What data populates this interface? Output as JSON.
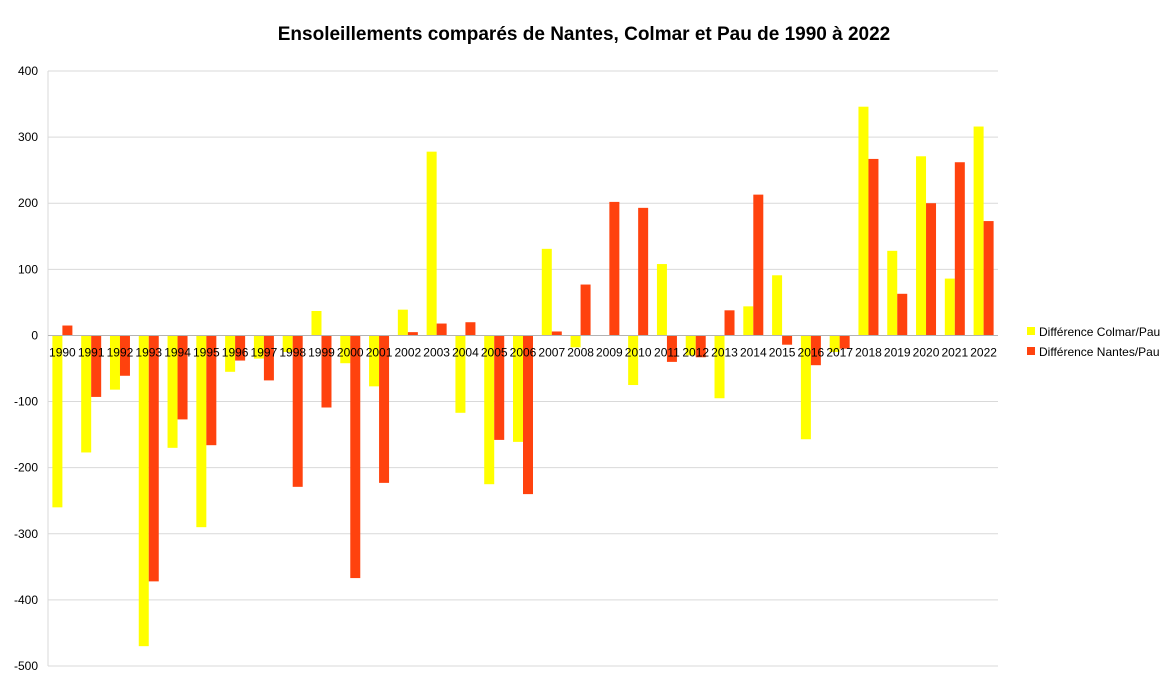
{
  "chart_data": {
    "type": "bar",
    "title": "Ensoleillements comparés de Nantes, Colmar et Pau de 1990 à 2022",
    "xlabel": "",
    "ylabel": "",
    "ylim": [
      -500,
      400
    ],
    "yticks": [
      400,
      300,
      200,
      100,
      0,
      -100,
      -200,
      -300,
      -400,
      -500
    ],
    "grid": true,
    "legend_position": "right",
    "categories": [
      "1990",
      "1991",
      "1992",
      "1993",
      "1994",
      "1995",
      "1996",
      "1997",
      "1998",
      "1999",
      "2000",
      "2001",
      "2002",
      "2003",
      "2004",
      "2005",
      "2006",
      "2007",
      "2008",
      "2009",
      "2010",
      "2011",
      "2012",
      "2013",
      "2014",
      "2015",
      "2016",
      "2017",
      "2018",
      "2019",
      "2020",
      "2021",
      "2022"
    ],
    "series": [
      {
        "name": "Différence Colmar/Pau",
        "color": "#ffff00",
        "values": [
          -260,
          -177,
          -82,
          -470,
          -170,
          -290,
          -55,
          -35,
          -25,
          37,
          -42,
          -77,
          39,
          278,
          -117,
          -225,
          -161,
          131,
          -18,
          0,
          -75,
          108,
          -30,
          -95,
          44,
          91,
          -157,
          -25,
          346,
          128,
          271,
          86,
          316
        ]
      },
      {
        "name": "Différence Nantes/Pau",
        "color": "#ff420e",
        "values": [
          15,
          -93,
          -61,
          -372,
          -127,
          -166,
          -38,
          -68,
          -229,
          -109,
          -367,
          -223,
          5,
          18,
          20,
          -158,
          -240,
          6,
          77,
          202,
          193,
          -40,
          -33,
          38,
          213,
          -14,
          -45,
          -20,
          267,
          63,
          200,
          262,
          173
        ]
      }
    ]
  }
}
